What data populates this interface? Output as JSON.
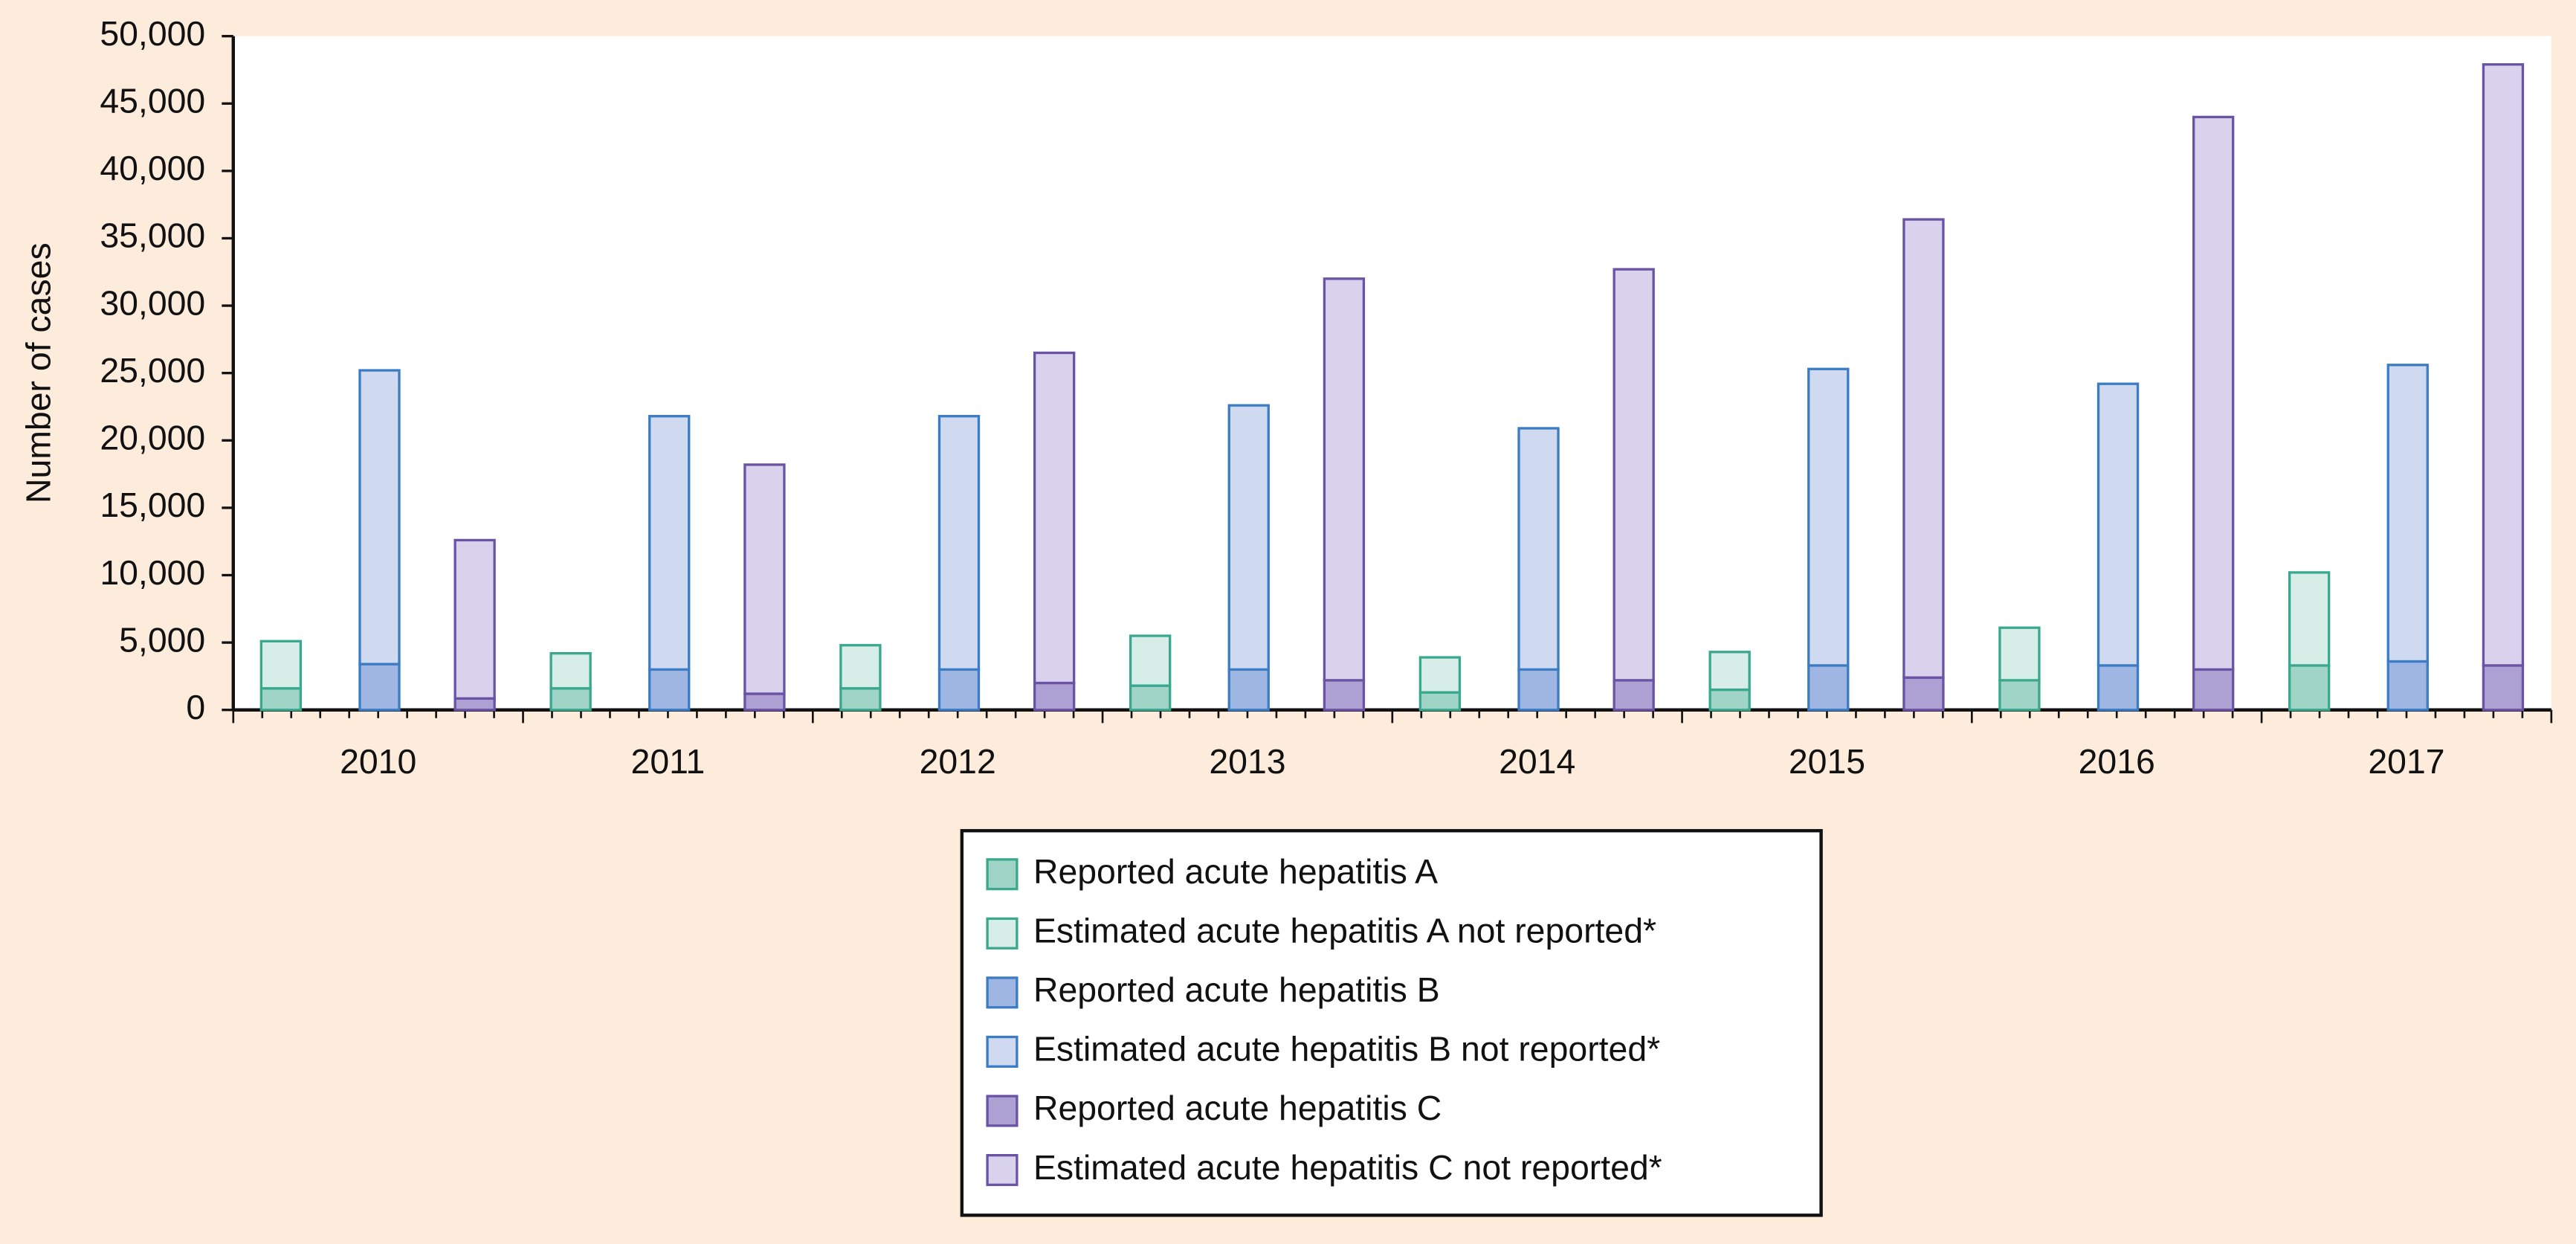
{
  "chart_data": {
    "type": "bar",
    "y_label": "Number of cases",
    "categories": [
      "2010",
      "2011",
      "2012",
      "2013",
      "2014",
      "2015",
      "2016",
      "2017"
    ],
    "series": [
      {
        "name": "Reported acute hepatitis A",
        "color": "#9fd4c6",
        "stroke": "#3aa88e",
        "values": [
          1600,
          1600,
          1600,
          1800,
          1300,
          1500,
          2200,
          3300
        ]
      },
      {
        "name": "Estimated acute hepatitis A not reported*",
        "color": "#d6ede8",
        "stroke": "#3aa88e",
        "values": [
          3500,
          2600,
          3200,
          3700,
          2600,
          2800,
          3900,
          6900
        ]
      },
      {
        "name": "Reported acute hepatitis B",
        "color": "#9fb6e2",
        "stroke": "#3b7cc4",
        "values": [
          3400,
          3000,
          3000,
          3000,
          3000,
          3300,
          3300,
          3600
        ]
      },
      {
        "name": "Estimated acute hepatitis B not reported*",
        "color": "#cfdaf0",
        "stroke": "#3b7cc4",
        "values": [
          21800,
          18800,
          18800,
          19600,
          17900,
          22000,
          20900,
          22000
        ]
      },
      {
        "name": "Reported acute hepatitis C",
        "color": "#ada0d3",
        "stroke": "#6a53a4",
        "values": [
          850,
          1200,
          2000,
          2200,
          2200,
          2400,
          3000,
          3300
        ]
      },
      {
        "name": "Estimated acute hepatitis C not reported*",
        "color": "#d8d2ec",
        "stroke": "#6a53a4",
        "values": [
          11750,
          17000,
          24500,
          29800,
          30500,
          34000,
          41000,
          44600
        ]
      }
    ],
    "ylim": [
      0,
      50000
    ],
    "yticks": [
      0,
      {
        "value": 5000,
        "label": "5,000"
      },
      {
        "value": 10000,
        "label": "10,000"
      },
      {
        "value": 15000,
        "label": "15,000"
      },
      {
        "value": 20000,
        "label": "20,000"
      },
      {
        "value": 25000,
        "label": "25,000"
      },
      {
        "value": 30000,
        "label": "30,000"
      },
      {
        "value": 35000,
        "label": "35,000"
      },
      {
        "value": 40000,
        "label": "40,000"
      },
      {
        "value": 45000,
        "label": "45,000"
      },
      {
        "value": 50000,
        "label": "50,000"
      }
    ],
    "grid": false
  }
}
